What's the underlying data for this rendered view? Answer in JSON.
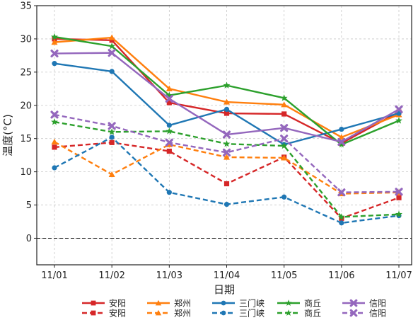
{
  "chart_data": {
    "type": "line",
    "title": "",
    "xlabel": "日期",
    "ylabel": "温度(°C)",
    "categories": [
      "11/01",
      "11/02",
      "11/03",
      "11/04",
      "11/05",
      "11/06",
      "11/07"
    ],
    "ylim": [
      -4,
      35
    ],
    "yticks": [
      0,
      5,
      10,
      15,
      20,
      25,
      30,
      35
    ],
    "grid": true,
    "zero_line": true,
    "legend_position": "bottom",
    "series": [
      {
        "name": "安阳",
        "group": "high",
        "color": "#d62728",
        "marker": "square",
        "dash": false,
        "values": [
          30.0,
          29.8,
          20.4,
          18.8,
          18.7,
          14.3,
          19.0
        ]
      },
      {
        "name": "郑州",
        "group": "high",
        "color": "#ff7f0e",
        "marker": "triangle",
        "dash": false,
        "values": [
          29.5,
          30.2,
          22.5,
          20.5,
          20.1,
          15.2,
          18.6
        ]
      },
      {
        "name": "三门峡",
        "group": "high",
        "color": "#1f77b4",
        "marker": "circle",
        "dash": false,
        "values": [
          26.3,
          25.1,
          17.0,
          19.4,
          14.1,
          16.4,
          18.8
        ]
      },
      {
        "name": "商丘",
        "group": "high",
        "color": "#2ca02c",
        "marker": "star",
        "dash": false,
        "values": [
          30.3,
          28.9,
          21.5,
          23.0,
          21.1,
          14.1,
          17.7
        ]
      },
      {
        "name": "信阳",
        "group": "high",
        "color": "#9467bd",
        "marker": "x",
        "dash": false,
        "values": [
          27.8,
          27.9,
          21.0,
          15.6,
          16.6,
          14.5,
          19.4
        ]
      },
      {
        "name": "安阳",
        "group": "low",
        "color": "#d62728",
        "marker": "square",
        "dash": true,
        "values": [
          13.7,
          14.4,
          13.1,
          8.2,
          12.2,
          3.0,
          6.1
        ]
      },
      {
        "name": "郑州",
        "group": "low",
        "color": "#ff7f0e",
        "marker": "triangle",
        "dash": true,
        "values": [
          14.5,
          9.6,
          14.1,
          12.2,
          12.1,
          6.7,
          6.9
        ]
      },
      {
        "name": "三门峡",
        "group": "low",
        "color": "#1f77b4",
        "marker": "circle",
        "dash": true,
        "values": [
          10.6,
          15.2,
          6.9,
          5.1,
          6.2,
          2.3,
          3.4
        ]
      },
      {
        "name": "商丘",
        "group": "low",
        "color": "#2ca02c",
        "marker": "star",
        "dash": true,
        "values": [
          17.5,
          16.0,
          16.1,
          14.2,
          13.9,
          3.2,
          3.6
        ]
      },
      {
        "name": "信阳",
        "group": "low",
        "color": "#9467bd",
        "marker": "x",
        "dash": true,
        "values": [
          18.6,
          16.9,
          14.4,
          12.9,
          15.0,
          6.9,
          7.0
        ]
      }
    ]
  }
}
